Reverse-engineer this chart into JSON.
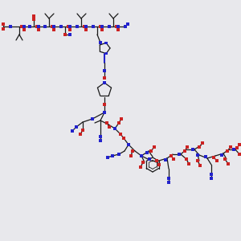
{
  "bg_color": "#e8e8ec",
  "bond_color": "#1a1a1a",
  "N_color": "#2222cc",
  "O_color": "#cc2222",
  "C_color": "#5a7a7a",
  "figsize": [
    3.0,
    3.0
  ],
  "dpi": 100
}
